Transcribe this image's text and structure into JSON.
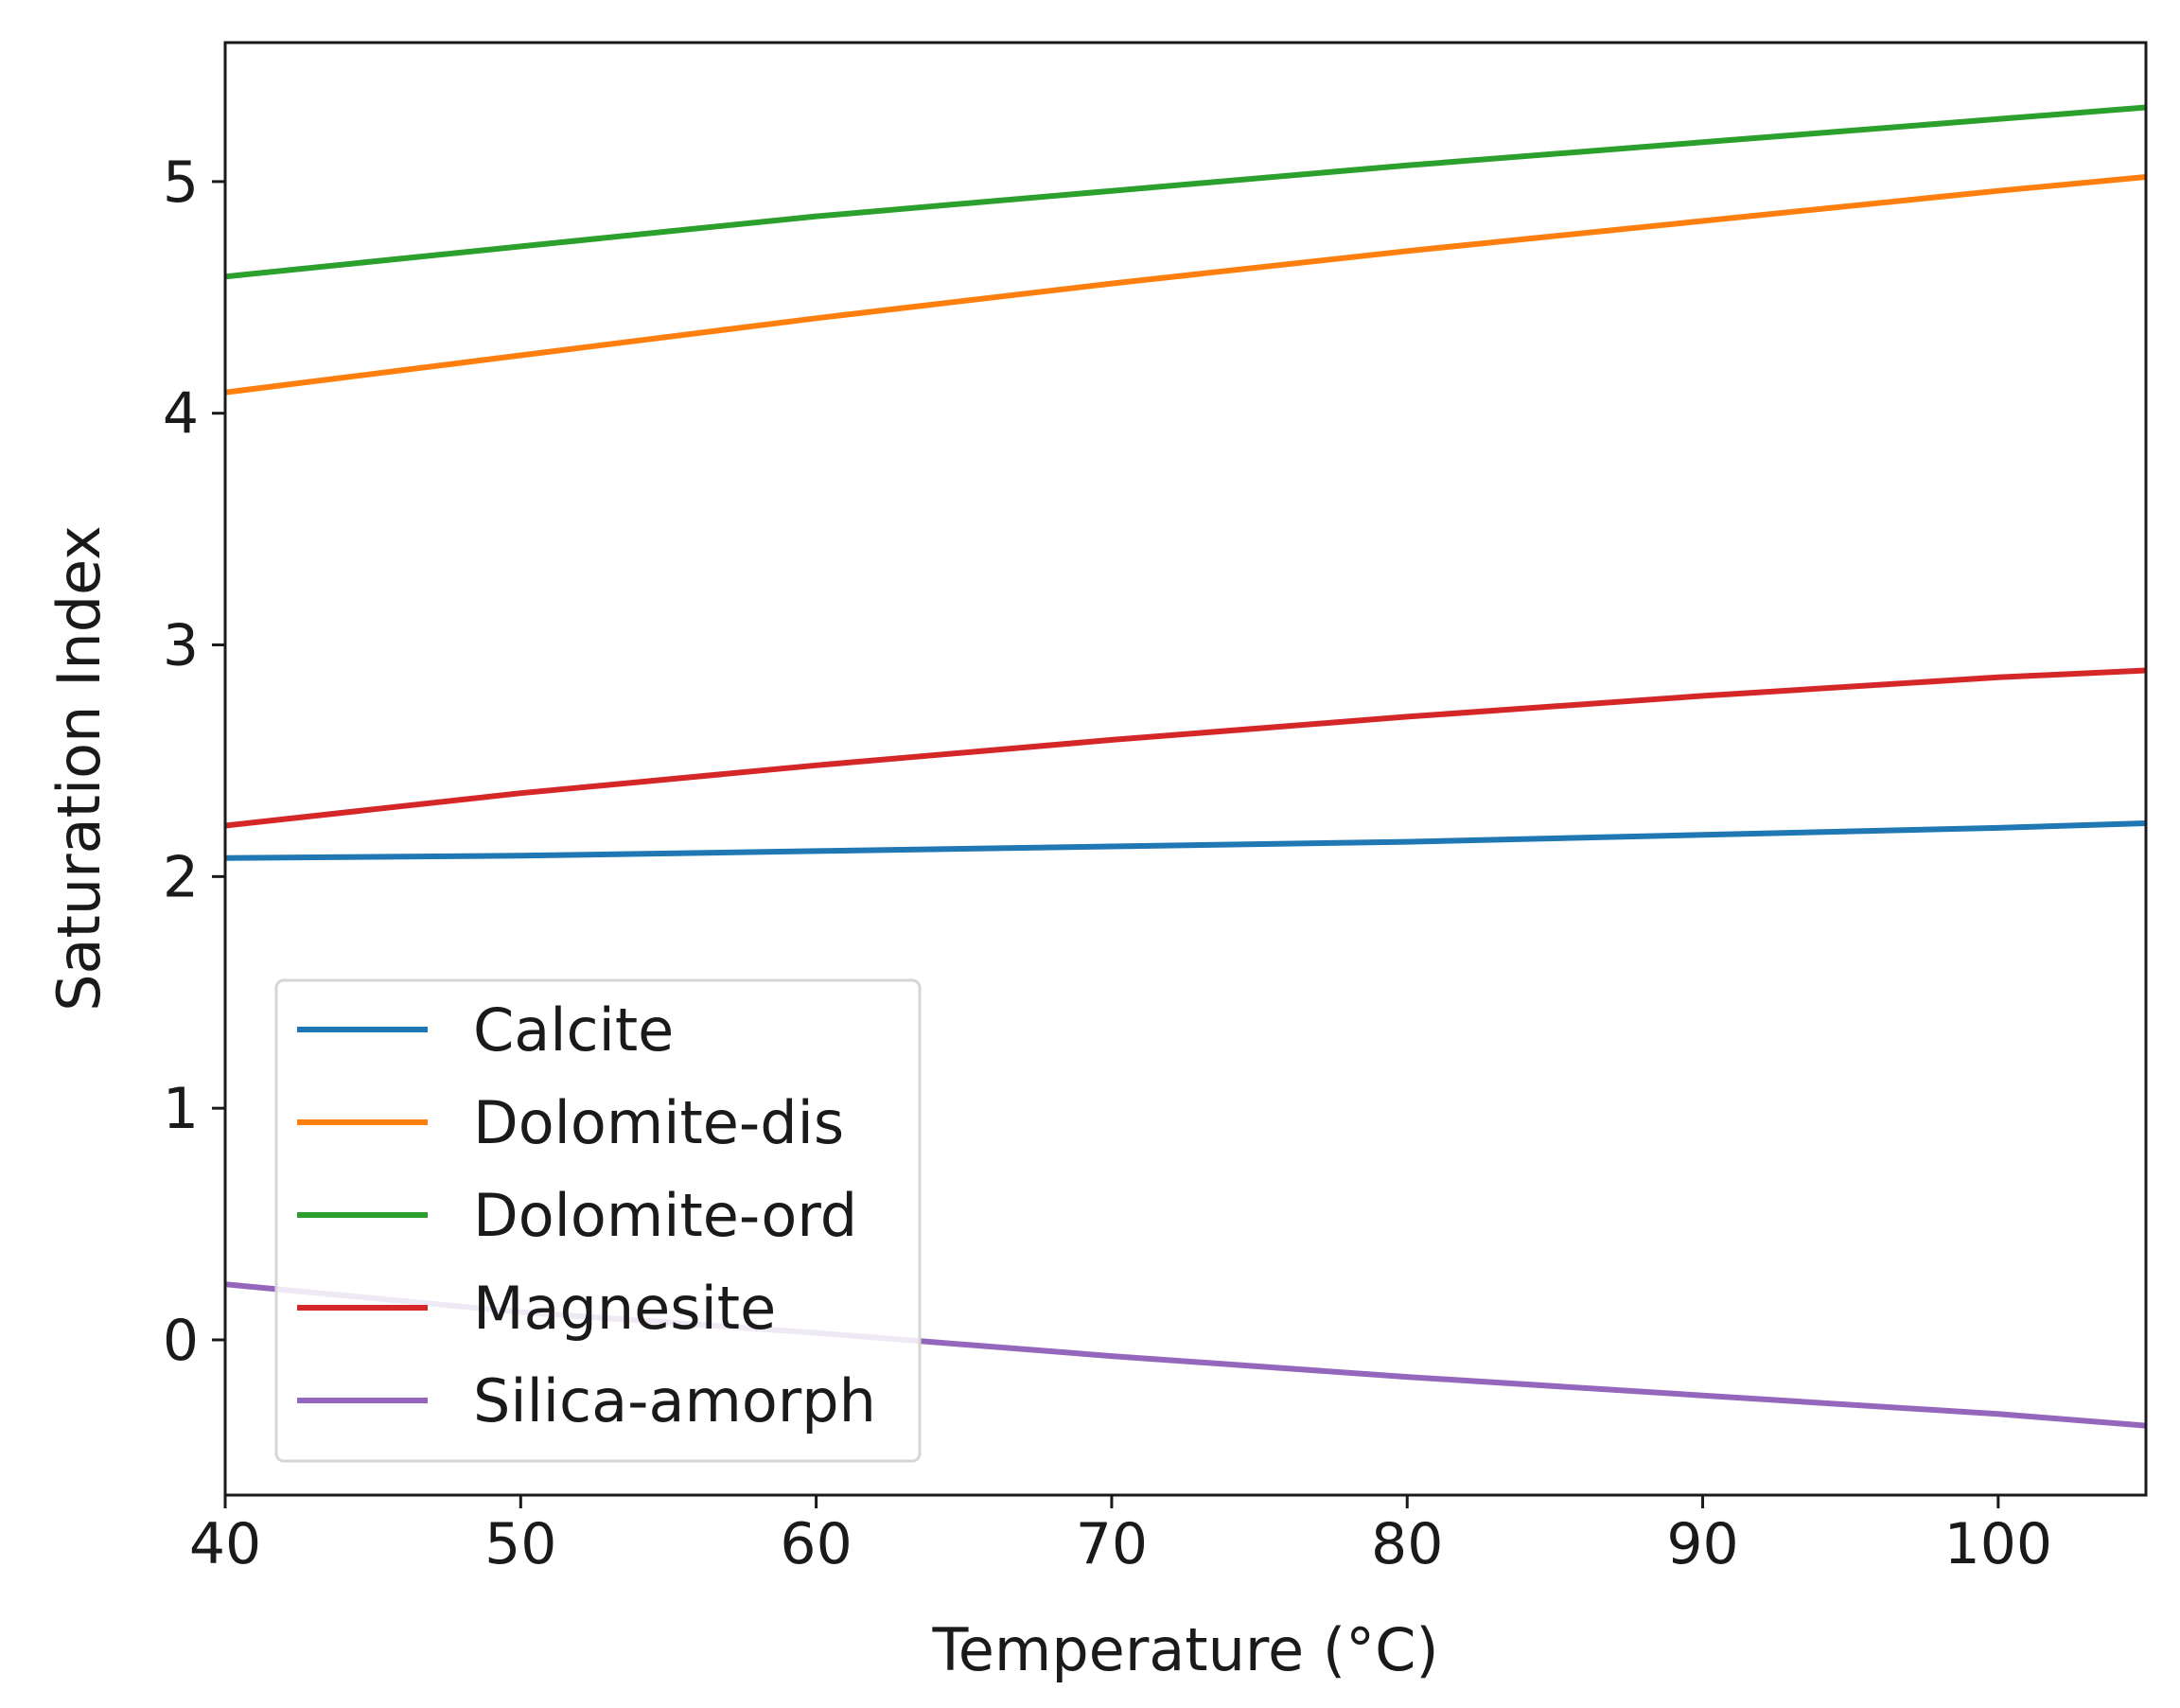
{
  "chart_data": {
    "type": "line",
    "title": "",
    "xlabel": "Temperature (°C)",
    "ylabel": "Saturation Index",
    "xlim": [
      40,
      105
    ],
    "ylim": [
      -0.67,
      5.6
    ],
    "xticks": [
      40,
      50,
      60,
      70,
      80,
      90,
      100
    ],
    "yticks": [
      0,
      1,
      2,
      3,
      4,
      5
    ],
    "grid": false,
    "legend_position": "bottom-left",
    "series": [
      {
        "name": "Calcite",
        "color": "#1f77b4",
        "x": [
          40,
          50,
          60,
          70,
          80,
          90,
          100,
          105
        ],
        "y": [
          2.08,
          2.09,
          2.11,
          2.13,
          2.15,
          2.18,
          2.21,
          2.23
        ]
      },
      {
        "name": "Dolomite-dis",
        "color": "#ff7f0e",
        "x": [
          40,
          50,
          60,
          70,
          80,
          90,
          100,
          105
        ],
        "y": [
          4.09,
          4.25,
          4.41,
          4.56,
          4.7,
          4.83,
          4.96,
          5.02
        ]
      },
      {
        "name": "Dolomite-ord",
        "color": "#2ca02c",
        "x": [
          40,
          50,
          60,
          70,
          80,
          90,
          100,
          105
        ],
        "y": [
          4.59,
          4.72,
          4.85,
          4.96,
          5.07,
          5.17,
          5.27,
          5.32
        ]
      },
      {
        "name": "Magnesite",
        "color": "#d62728",
        "x": [
          40,
          50,
          60,
          70,
          80,
          90,
          100,
          105
        ],
        "y": [
          2.22,
          2.36,
          2.48,
          2.59,
          2.69,
          2.78,
          2.86,
          2.89
        ]
      },
      {
        "name": "Silica-amorph",
        "color": "#9467bd",
        "x": [
          40,
          50,
          60,
          70,
          80,
          90,
          100,
          105
        ],
        "y": [
          0.24,
          0.12,
          0.03,
          -0.07,
          -0.16,
          -0.24,
          -0.32,
          -0.37
        ]
      }
    ]
  }
}
